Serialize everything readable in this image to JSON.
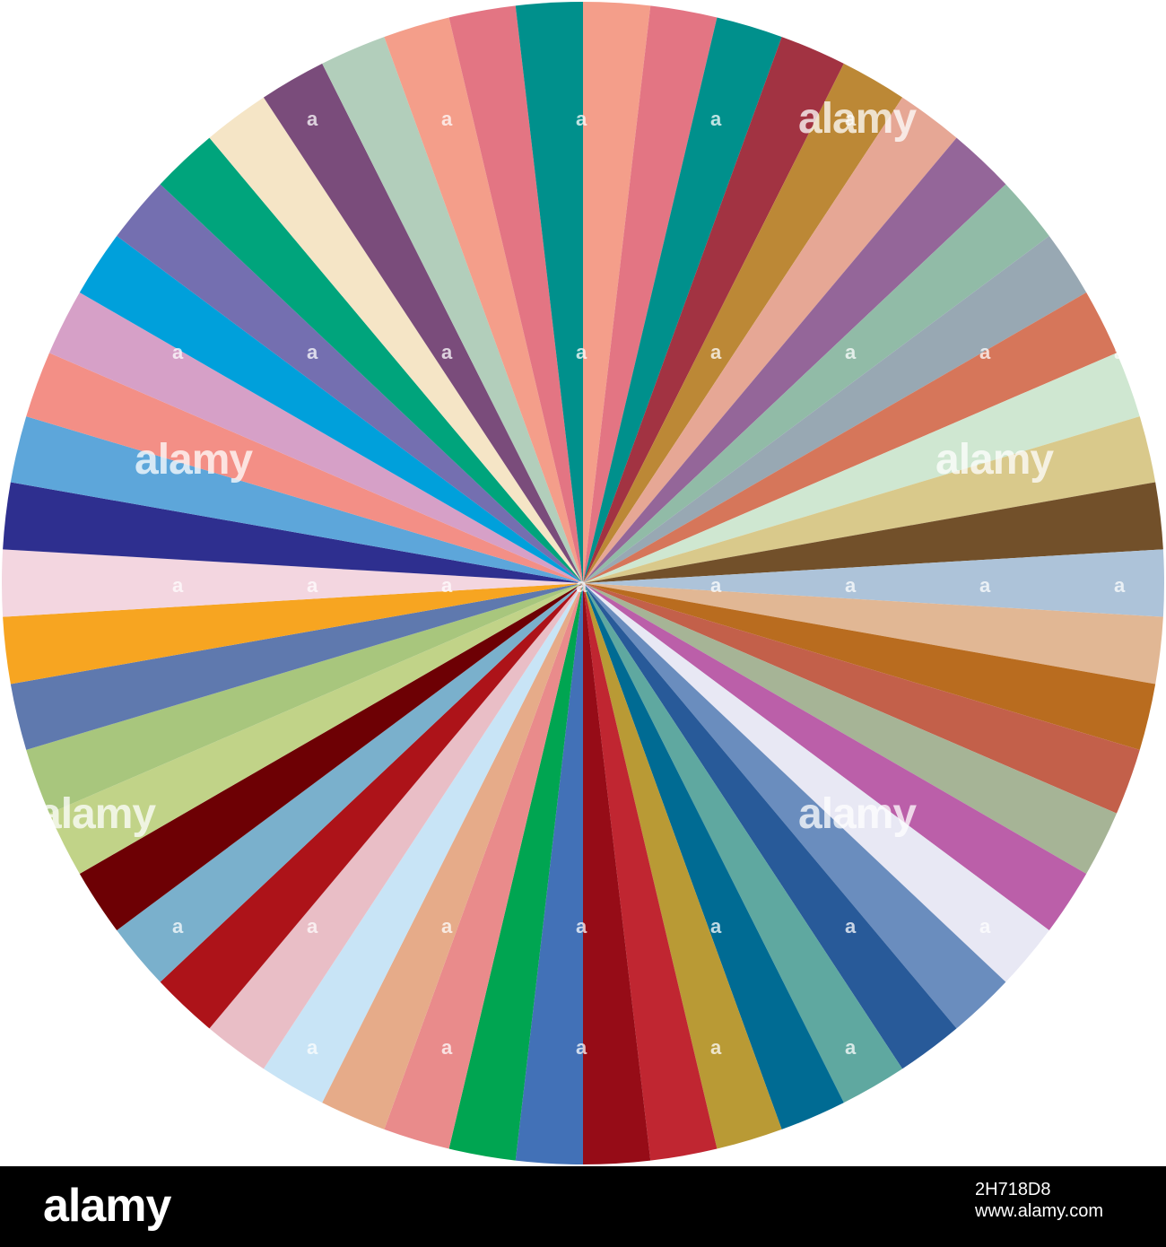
{
  "chart_data": {
    "type": "pie",
    "values": [
      1,
      1,
      1,
      1,
      1,
      1,
      1,
      1,
      1,
      1,
      1,
      1,
      1,
      1,
      1,
      1,
      1,
      1,
      1,
      1,
      1,
      1,
      1,
      1,
      1,
      1,
      1,
      1,
      1,
      1,
      1,
      1,
      1,
      1,
      1,
      1,
      1,
      1,
      1,
      1,
      1,
      1,
      1,
      1,
      1,
      1,
      1,
      1,
      1,
      1,
      1,
      1,
      1,
      1
    ],
    "colors": [
      "#f49e8a",
      "#e37583",
      "#00908c",
      "#a23342",
      "#bc8836",
      "#e6a795",
      "#946699",
      "#91bba7",
      "#98a8b3",
      "#d6765a",
      "#cfe7d1",
      "#d9c98b",
      "#72502a",
      "#adc3d9",
      "#e1b794",
      "#b96c1f",
      "#c3604a",
      "#a6b496",
      "#bb5fa9",
      "#e8e8f4",
      "#6a8dbe",
      "#285a99",
      "#5fa8a0",
      "#006b93",
      "#b99a35",
      "#c02631",
      "#960c17",
      "#4271b7",
      "#00a551",
      "#e98b8b",
      "#e6ab89",
      "#c8e4f6",
      "#e9bec6",
      "#ad1319",
      "#7ab0cc",
      "#6d0004",
      "#c1d388",
      "#a8c67d",
      "#5f79ae",
      "#f7a521",
      "#f3d6e0",
      "#2e2f8f",
      "#5da6da",
      "#f38f86",
      "#d6a0c7",
      "#00a0db",
      "#746fb0",
      "#00a47c",
      "#f5e5c6",
      "#7a4c7b",
      "#b2cebb",
      "#f49e8a",
      "#e37583",
      "#00908c"
    ]
  },
  "watermark": {
    "brand": "alamy",
    "letter": "a"
  },
  "footer": {
    "logo": "alamy",
    "image_id": "2H718D8",
    "url": "www.alamy.com"
  }
}
